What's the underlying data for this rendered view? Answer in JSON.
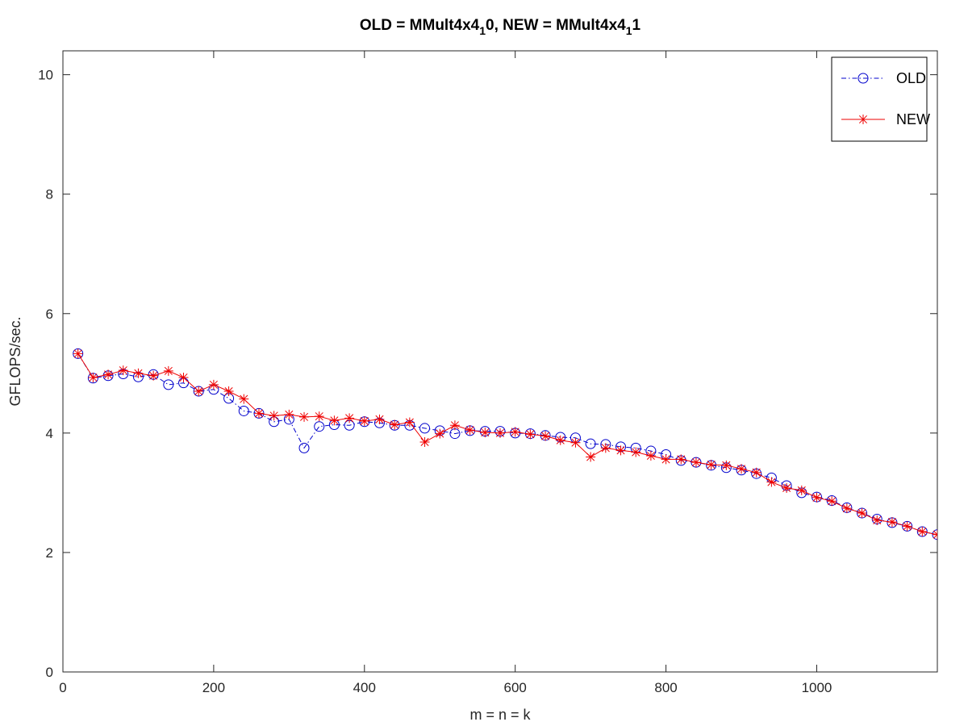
{
  "chart_data": {
    "type": "line",
    "title": {
      "part1": "OLD = MMult4x4",
      "sub1": "1",
      "part2": "0, NEW = MMult4x4",
      "sub2": "1",
      "part3": "1"
    },
    "xlabel": "m = n = k",
    "ylabel": "GFLOPS/sec.",
    "xlim": [
      0,
      1160
    ],
    "ylim": [
      0,
      10.4
    ],
    "xticks": [
      0,
      200,
      400,
      600,
      800,
      1000
    ],
    "yticks": [
      0,
      2,
      4,
      6,
      8,
      10
    ],
    "grid": false,
    "legend_position": "top-right",
    "x": [
      20,
      40,
      60,
      80,
      100,
      120,
      140,
      160,
      180,
      200,
      220,
      240,
      260,
      280,
      300,
      320,
      340,
      360,
      380,
      400,
      420,
      440,
      460,
      480,
      500,
      520,
      540,
      560,
      580,
      600,
      620,
      640,
      660,
      680,
      700,
      720,
      740,
      760,
      780,
      800,
      820,
      840,
      860,
      880,
      900,
      920,
      940,
      960,
      980,
      1000,
      1020,
      1040,
      1060,
      1080,
      1100,
      1120,
      1140,
      1160
    ],
    "series": [
      {
        "name": "OLD",
        "color": "#0000cc",
        "marker": "circle",
        "line": "dash-dot",
        "values": [
          5.33,
          4.92,
          4.96,
          4.99,
          4.94,
          4.98,
          4.81,
          4.84,
          4.7,
          4.73,
          4.58,
          4.37,
          4.33,
          4.19,
          4.23,
          3.75,
          4.11,
          4.14,
          4.13,
          4.19,
          4.17,
          4.13,
          4.13,
          4.08,
          4.04,
          3.99,
          4.04,
          4.03,
          4.03,
          4.0,
          3.99,
          3.96,
          3.93,
          3.92,
          3.82,
          3.81,
          3.77,
          3.75,
          3.7,
          3.64,
          3.54,
          3.51,
          3.46,
          3.42,
          3.38,
          3.32,
          3.25,
          3.12,
          3.0,
          2.93,
          2.87,
          2.75,
          2.66,
          2.56,
          2.5,
          2.44,
          2.35,
          2.3
        ]
      },
      {
        "name": "NEW",
        "color": "#ee0000",
        "marker": "asterisk",
        "line": "solid",
        "values": [
          5.33,
          4.93,
          4.98,
          5.05,
          5.0,
          4.96,
          5.04,
          4.93,
          4.7,
          4.81,
          4.7,
          4.57,
          4.33,
          4.29,
          4.31,
          4.27,
          4.28,
          4.21,
          4.25,
          4.2,
          4.23,
          4.14,
          4.18,
          3.85,
          3.99,
          4.13,
          4.05,
          4.01,
          4.0,
          4.02,
          3.98,
          3.95,
          3.88,
          3.84,
          3.6,
          3.75,
          3.71,
          3.68,
          3.62,
          3.56,
          3.56,
          3.51,
          3.47,
          3.46,
          3.4,
          3.34,
          3.18,
          3.08,
          3.04,
          2.92,
          2.86,
          2.74,
          2.66,
          2.54,
          2.51,
          2.44,
          2.35,
          2.3
        ]
      }
    ]
  }
}
